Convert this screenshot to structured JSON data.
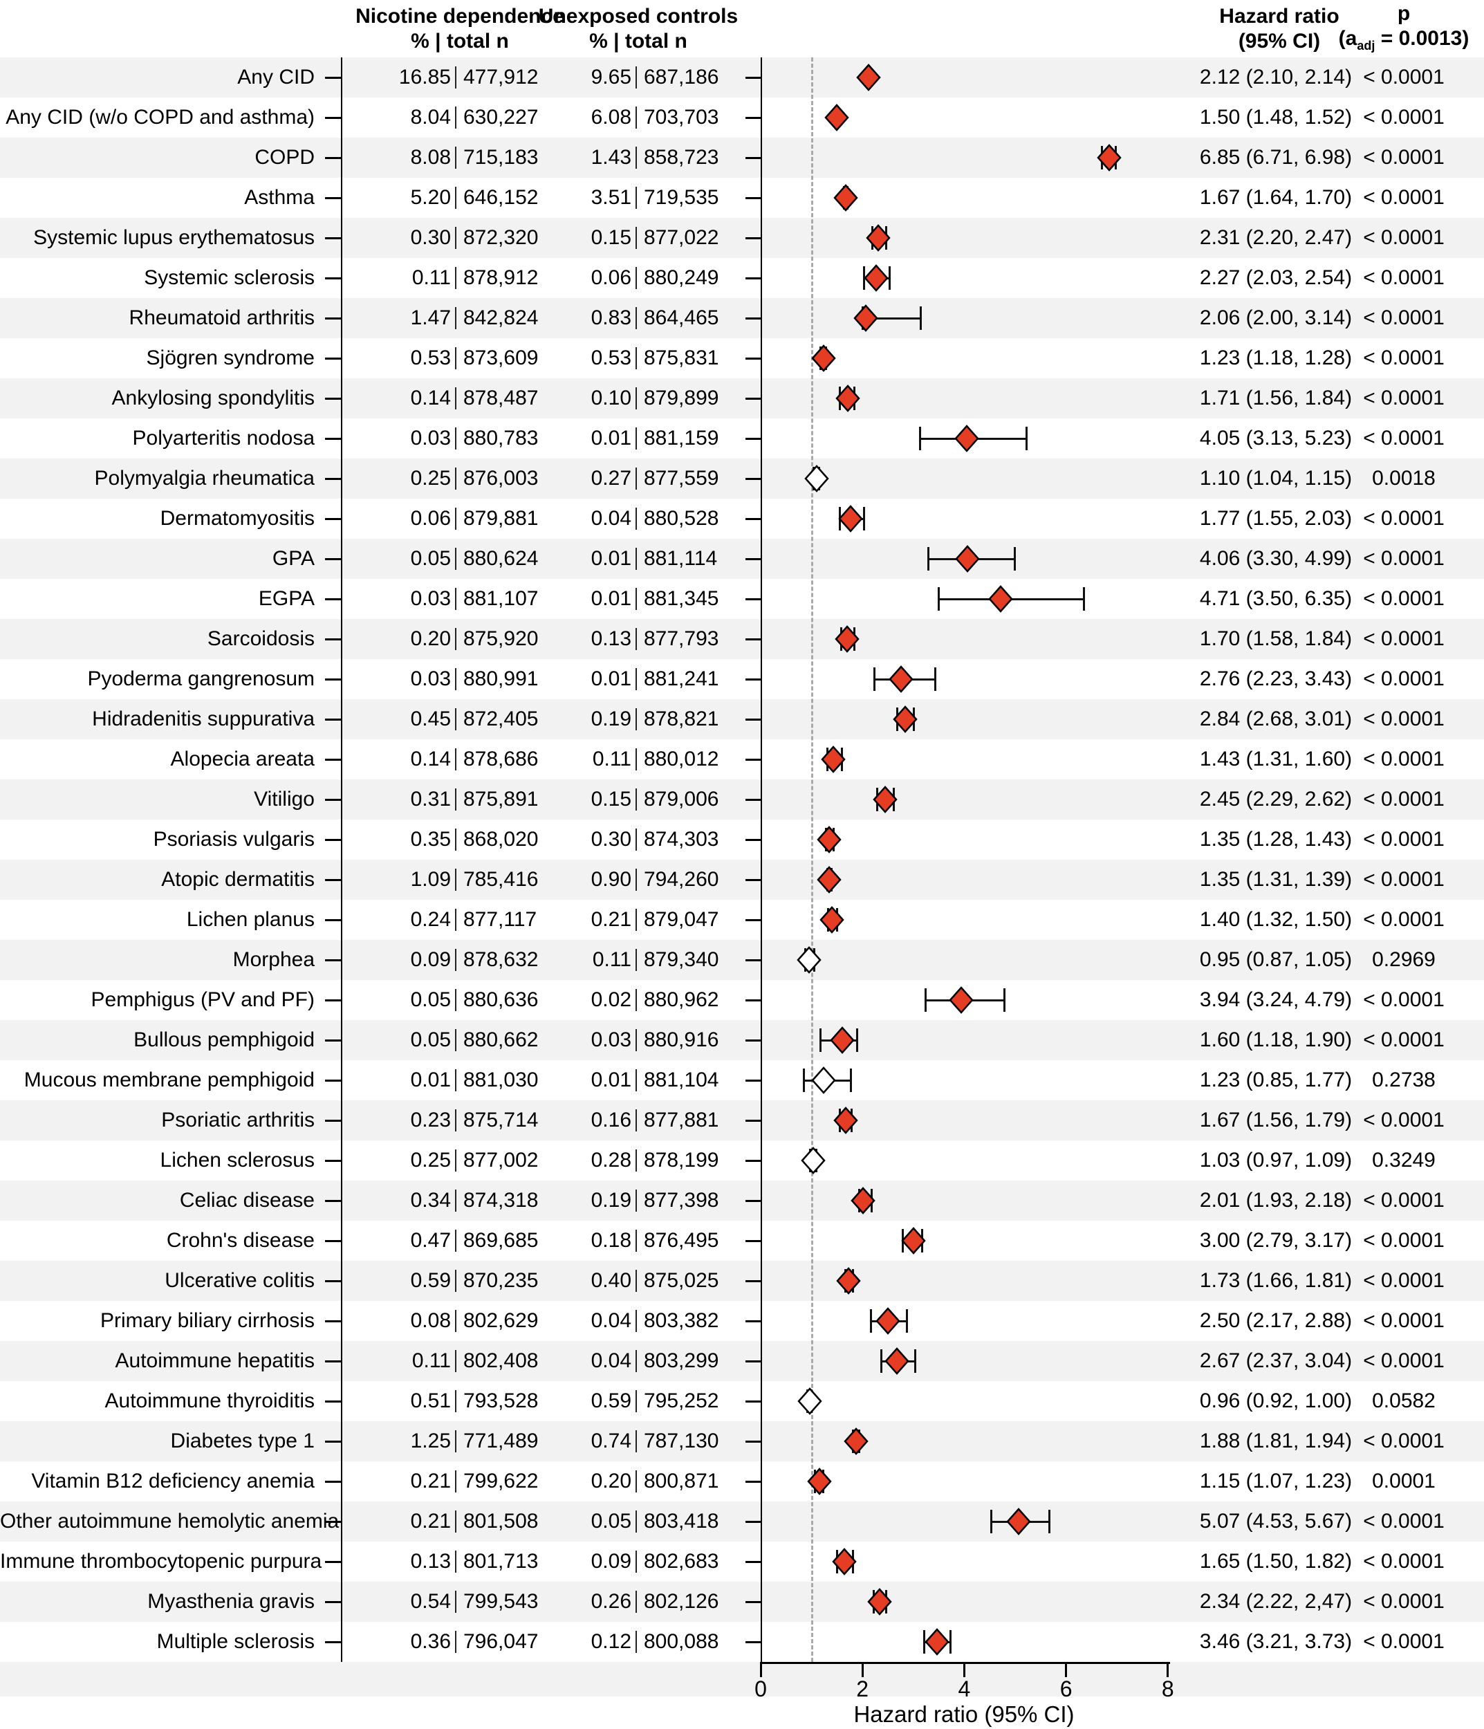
{
  "figure": {
    "columns": {
      "nicotine": {
        "title": "Nicotine dependence",
        "subtitle": "% | total n"
      },
      "controls": {
        "title": "Unexposed controls",
        "subtitle": "% | total n"
      },
      "hazard": {
        "title": "Hazard ratio",
        "subtitle": "(95% CI)"
      },
      "p": {
        "title": "p",
        "sub_prefix": "(a",
        "sub_script": "adj",
        "sub_suffix": " = 0.0013)"
      }
    }
  },
  "colors": {
    "significant_fill": "#e43d23",
    "non_significant_fill": "#ffffff",
    "marker_stroke": "#000000",
    "row_shade": "#f2f2f2",
    "axis_line": "#000000",
    "reference_dash": "#a9a9a9"
  },
  "chart_data": {
    "type": "forest",
    "title": "",
    "xlabel": "Hazard ratio (95% CI)",
    "x_ticks": [
      0,
      2,
      4,
      6,
      8
    ],
    "xlim": [
      0,
      8
    ],
    "reference_line": 1,
    "alpha_adjusted": 0.0013,
    "grid": false,
    "rows": [
      {
        "label": "Any CID",
        "exposed_pct": "16.85",
        "exposed_n": "477,912",
        "control_pct": "9.65",
        "control_n": "687,186",
        "hr": 2.12,
        "ci_low": 2.1,
        "ci_high": 2.14,
        "hr_display": "2.12 (2.10, 2.14)",
        "p_display": "< 0.0001",
        "significant": true
      },
      {
        "label": "Any CID (w/o COPD and asthma)",
        "exposed_pct": "8.04",
        "exposed_n": "630,227",
        "control_pct": "6.08",
        "control_n": "703,703",
        "hr": 1.5,
        "ci_low": 1.48,
        "ci_high": 1.52,
        "hr_display": "1.50 (1.48, 1.52)",
        "p_display": "< 0.0001",
        "significant": true
      },
      {
        "label": "COPD",
        "exposed_pct": "8.08",
        "exposed_n": "715,183",
        "control_pct": "1.43",
        "control_n": "858,723",
        "hr": 6.85,
        "ci_low": 6.71,
        "ci_high": 6.98,
        "hr_display": "6.85 (6.71, 6.98)",
        "p_display": "< 0.0001",
        "significant": true
      },
      {
        "label": "Asthma",
        "exposed_pct": "5.20",
        "exposed_n": "646,152",
        "control_pct": "3.51",
        "control_n": "719,535",
        "hr": 1.67,
        "ci_low": 1.64,
        "ci_high": 1.7,
        "hr_display": "1.67 (1.64, 1.70)",
        "p_display": "< 0.0001",
        "significant": true
      },
      {
        "label": "Systemic lupus erythematosus",
        "exposed_pct": "0.30",
        "exposed_n": "872,320",
        "control_pct": "0.15",
        "control_n": "877,022",
        "hr": 2.31,
        "ci_low": 2.2,
        "ci_high": 2.47,
        "hr_display": "2.31 (2.20, 2.47)",
        "p_display": "< 0.0001",
        "significant": true
      },
      {
        "label": "Systemic sclerosis",
        "exposed_pct": "0.11",
        "exposed_n": "878,912",
        "control_pct": "0.06",
        "control_n": "880,249",
        "hr": 2.27,
        "ci_low": 2.03,
        "ci_high": 2.54,
        "hr_display": "2.27 (2.03, 2.54)",
        "p_display": "< 0.0001",
        "significant": true
      },
      {
        "label": "Rheumatoid arthritis",
        "exposed_pct": "1.47",
        "exposed_n": "842,824",
        "control_pct": "0.83",
        "control_n": "864,465",
        "hr": 2.06,
        "ci_low": 2.0,
        "ci_high": 3.14,
        "hr_display": "2.06 (2.00, 3.14)",
        "p_display": "< 0.0001",
        "significant": true
      },
      {
        "label": "Sjögren syndrome",
        "exposed_pct": "0.53",
        "exposed_n": "873,609",
        "control_pct": "0.53",
        "control_n": "875,831",
        "hr": 1.23,
        "ci_low": 1.18,
        "ci_high": 1.28,
        "hr_display": "1.23 (1.18, 1.28)",
        "p_display": "< 0.0001",
        "significant": true
      },
      {
        "label": "Ankylosing spondylitis",
        "exposed_pct": "0.14",
        "exposed_n": "878,487",
        "control_pct": "0.10",
        "control_n": "879,899",
        "hr": 1.71,
        "ci_low": 1.56,
        "ci_high": 1.84,
        "hr_display": "1.71 (1.56, 1.84)",
        "p_display": "< 0.0001",
        "significant": true
      },
      {
        "label": "Polyarteritis nodosa",
        "exposed_pct": "0.03",
        "exposed_n": "880,783",
        "control_pct": "0.01",
        "control_n": "881,159",
        "hr": 4.05,
        "ci_low": 3.13,
        "ci_high": 5.23,
        "hr_display": "4.05 (3.13, 5.23)",
        "p_display": "< 0.0001",
        "significant": true
      },
      {
        "label": "Polymyalgia rheumatica",
        "exposed_pct": "0.25",
        "exposed_n": "876,003",
        "control_pct": "0.27",
        "control_n": "877,559",
        "hr": 1.1,
        "ci_low": 1.04,
        "ci_high": 1.15,
        "hr_display": "1.10 (1.04, 1.15)",
        "p_display": "0.0018",
        "significant": false
      },
      {
        "label": "Dermatomyositis",
        "exposed_pct": "0.06",
        "exposed_n": "879,881",
        "control_pct": "0.04",
        "control_n": "880,528",
        "hr": 1.77,
        "ci_low": 1.55,
        "ci_high": 2.03,
        "hr_display": "1.77 (1.55, 2.03)",
        "p_display": "< 0.0001",
        "significant": true
      },
      {
        "label": "GPA",
        "exposed_pct": "0.05",
        "exposed_n": "880,624",
        "control_pct": "0.01",
        "control_n": "881,114",
        "hr": 4.06,
        "ci_low": 3.3,
        "ci_high": 4.99,
        "hr_display": "4.06 (3.30, 4.99)",
        "p_display": "< 0.0001",
        "significant": true
      },
      {
        "label": "EGPA",
        "exposed_pct": "0.03",
        "exposed_n": "881,107",
        "control_pct": "0.01",
        "control_n": "881,345",
        "hr": 4.71,
        "ci_low": 3.5,
        "ci_high": 6.35,
        "hr_display": "4.71 (3.50, 6.35)",
        "p_display": "< 0.0001",
        "significant": true
      },
      {
        "label": "Sarcoidosis",
        "exposed_pct": "0.20",
        "exposed_n": "875,920",
        "control_pct": "0.13",
        "control_n": "877,793",
        "hr": 1.7,
        "ci_low": 1.58,
        "ci_high": 1.84,
        "hr_display": "1.70 (1.58, 1.84)",
        "p_display": "< 0.0001",
        "significant": true
      },
      {
        "label": "Pyoderma gangrenosum",
        "exposed_pct": "0.03",
        "exposed_n": "880,991",
        "control_pct": "0.01",
        "control_n": "881,241",
        "hr": 2.76,
        "ci_low": 2.23,
        "ci_high": 3.43,
        "hr_display": "2.76 (2.23, 3.43)",
        "p_display": "< 0.0001",
        "significant": true
      },
      {
        "label": "Hidradenitis suppurativa",
        "exposed_pct": "0.45",
        "exposed_n": "872,405",
        "control_pct": "0.19",
        "control_n": "878,821",
        "hr": 2.84,
        "ci_low": 2.68,
        "ci_high": 3.01,
        "hr_display": "2.84 (2.68, 3.01)",
        "p_display": "< 0.0001",
        "significant": true
      },
      {
        "label": "Alopecia areata",
        "exposed_pct": "0.14",
        "exposed_n": "878,686",
        "control_pct": "0.11",
        "control_n": "880,012",
        "hr": 1.43,
        "ci_low": 1.31,
        "ci_high": 1.6,
        "hr_display": "1.43 (1.31, 1.60)",
        "p_display": "< 0.0001",
        "significant": true
      },
      {
        "label": "Vitiligo",
        "exposed_pct": "0.31",
        "exposed_n": "875,891",
        "control_pct": "0.15",
        "control_n": "879,006",
        "hr": 2.45,
        "ci_low": 2.29,
        "ci_high": 2.62,
        "hr_display": "2.45 (2.29, 2.62)",
        "p_display": "< 0.0001",
        "significant": true
      },
      {
        "label": "Psoriasis vulgaris",
        "exposed_pct": "0.35",
        "exposed_n": "868,020",
        "control_pct": "0.30",
        "control_n": "874,303",
        "hr": 1.35,
        "ci_low": 1.28,
        "ci_high": 1.43,
        "hr_display": "1.35 (1.28, 1.43)",
        "p_display": "< 0.0001",
        "significant": true
      },
      {
        "label": "Atopic dermatitis",
        "exposed_pct": "1.09",
        "exposed_n": "785,416",
        "control_pct": "0.90",
        "control_n": "794,260",
        "hr": 1.35,
        "ci_low": 1.31,
        "ci_high": 1.39,
        "hr_display": "1.35 (1.31, 1.39)",
        "p_display": "< 0.0001",
        "significant": true
      },
      {
        "label": "Lichen planus",
        "exposed_pct": "0.24",
        "exposed_n": "877,117",
        "control_pct": "0.21",
        "control_n": "879,047",
        "hr": 1.4,
        "ci_low": 1.32,
        "ci_high": 1.5,
        "hr_display": "1.40 (1.32, 1.50)",
        "p_display": "< 0.0001",
        "significant": true
      },
      {
        "label": "Morphea",
        "exposed_pct": "0.09",
        "exposed_n": "878,632",
        "control_pct": "0.11",
        "control_n": "879,340",
        "hr": 0.95,
        "ci_low": 0.87,
        "ci_high": 1.05,
        "hr_display": "0.95 (0.87, 1.05)",
        "p_display": "0.2969",
        "significant": false
      },
      {
        "label": "Pemphigus (PV and PF)",
        "exposed_pct": "0.05",
        "exposed_n": "880,636",
        "control_pct": "0.02",
        "control_n": "880,962",
        "hr": 3.94,
        "ci_low": 3.24,
        "ci_high": 4.79,
        "hr_display": "3.94 (3.24, 4.79)",
        "p_display": "< 0.0001",
        "significant": true
      },
      {
        "label": "Bullous pemphigoid",
        "exposed_pct": "0.05",
        "exposed_n": "880,662",
        "control_pct": "0.03",
        "control_n": "880,916",
        "hr": 1.6,
        "ci_low": 1.18,
        "ci_high": 1.9,
        "hr_display": "1.60 (1.18, 1.90)",
        "p_display": "< 0.0001",
        "significant": true
      },
      {
        "label": "Mucous membrane pemphigoid",
        "exposed_pct": "0.01",
        "exposed_n": "881,030",
        "control_pct": "0.01",
        "control_n": "881,104",
        "hr": 1.23,
        "ci_low": 0.85,
        "ci_high": 1.77,
        "hr_display": "1.23 (0.85, 1.77)",
        "p_display": "0.2738",
        "significant": false
      },
      {
        "label": "Psoriatic arthritis",
        "exposed_pct": "0.23",
        "exposed_n": "875,714",
        "control_pct": "0.16",
        "control_n": "877,881",
        "hr": 1.67,
        "ci_low": 1.56,
        "ci_high": 1.79,
        "hr_display": "1.67 (1.56, 1.79)",
        "p_display": "< 0.0001",
        "significant": true
      },
      {
        "label": "Lichen sclerosus",
        "exposed_pct": "0.25",
        "exposed_n": "877,002",
        "control_pct": "0.28",
        "control_n": "878,199",
        "hr": 1.03,
        "ci_low": 0.97,
        "ci_high": 1.09,
        "hr_display": "1.03 (0.97, 1.09)",
        "p_display": "0.3249",
        "significant": false
      },
      {
        "label": "Celiac disease",
        "exposed_pct": "0.34",
        "exposed_n": "874,318",
        "control_pct": "0.19",
        "control_n": "877,398",
        "hr": 2.01,
        "ci_low": 1.93,
        "ci_high": 2.18,
        "hr_display": "2.01 (1.93, 2.18)",
        "p_display": "< 0.0001",
        "significant": true
      },
      {
        "label": "Crohn's disease",
        "exposed_pct": "0.47",
        "exposed_n": "869,685",
        "control_pct": "0.18",
        "control_n": "876,495",
        "hr": 3.0,
        "ci_low": 2.79,
        "ci_high": 3.17,
        "hr_display": "3.00 (2.79, 3.17)",
        "p_display": "< 0.0001",
        "significant": true
      },
      {
        "label": "Ulcerative colitis",
        "exposed_pct": "0.59",
        "exposed_n": "870,235",
        "control_pct": "0.40",
        "control_n": "875,025",
        "hr": 1.73,
        "ci_low": 1.66,
        "ci_high": 1.81,
        "hr_display": "1.73 (1.66, 1.81)",
        "p_display": "< 0.0001",
        "significant": true
      },
      {
        "label": "Primary biliary cirrhosis",
        "exposed_pct": "0.08",
        "exposed_n": "802,629",
        "control_pct": "0.04",
        "control_n": "803,382",
        "hr": 2.5,
        "ci_low": 2.17,
        "ci_high": 2.88,
        "hr_display": "2.50 (2.17, 2.88)",
        "p_display": "< 0.0001",
        "significant": true
      },
      {
        "label": "Autoimmune hepatitis",
        "exposed_pct": "0.11",
        "exposed_n": "802,408",
        "control_pct": "0.04",
        "control_n": "803,299",
        "hr": 2.67,
        "ci_low": 2.37,
        "ci_high": 3.04,
        "hr_display": "2.67 (2.37, 3.04)",
        "p_display": "< 0.0001",
        "significant": true
      },
      {
        "label": "Autoimmune thyroiditis",
        "exposed_pct": "0.51",
        "exposed_n": "793,528",
        "control_pct": "0.59",
        "control_n": "795,252",
        "hr": 0.96,
        "ci_low": 0.92,
        "ci_high": 1.0,
        "hr_display": "0.96 (0.92, 1.00)",
        "p_display": "0.0582",
        "significant": false
      },
      {
        "label": "Diabetes type 1",
        "exposed_pct": "1.25",
        "exposed_n": "771,489",
        "control_pct": "0.74",
        "control_n": "787,130",
        "hr": 1.88,
        "ci_low": 1.81,
        "ci_high": 1.94,
        "hr_display": "1.88 (1.81, 1.94)",
        "p_display": "< 0.0001",
        "significant": true
      },
      {
        "label": "Vitamin B12 deficiency anemia",
        "exposed_pct": "0.21",
        "exposed_n": "799,622",
        "control_pct": "0.20",
        "control_n": "800,871",
        "hr": 1.15,
        "ci_low": 1.07,
        "ci_high": 1.23,
        "hr_display": "1.15 (1.07, 1.23)",
        "p_display": "0.0001",
        "significant": true
      },
      {
        "label": "Other autoimmune hemolytic anemia",
        "exposed_pct": "0.21",
        "exposed_n": "801,508",
        "control_pct": "0.05",
        "control_n": "803,418",
        "hr": 5.07,
        "ci_low": 4.53,
        "ci_high": 5.67,
        "hr_display": "5.07 (4.53, 5.67)",
        "p_display": "< 0.0001",
        "significant": true
      },
      {
        "label": "Immune thrombocytopenic purpura",
        "exposed_pct": "0.13",
        "exposed_n": "801,713",
        "control_pct": "0.09",
        "control_n": "802,683",
        "hr": 1.65,
        "ci_low": 1.5,
        "ci_high": 1.82,
        "hr_display": "1.65 (1.50, 1.82)",
        "p_display": "< 0.0001",
        "significant": true
      },
      {
        "label": "Myasthenia gravis",
        "exposed_pct": "0.54",
        "exposed_n": "799,543",
        "control_pct": "0.26",
        "control_n": "802,126",
        "hr": 2.34,
        "ci_low": 2.22,
        "ci_high": 2.47,
        "hr_display": "2.34 (2.22, 2,47)",
        "p_display": "< 0.0001",
        "significant": true
      },
      {
        "label": "Multiple sclerosis",
        "exposed_pct": "0.36",
        "exposed_n": "796,047",
        "control_pct": "0.12",
        "control_n": "800,088",
        "hr": 3.46,
        "ci_low": 3.21,
        "ci_high": 3.73,
        "hr_display": "3.46 (3.21, 3.73)",
        "p_display": "< 0.0001",
        "significant": true
      }
    ]
  }
}
